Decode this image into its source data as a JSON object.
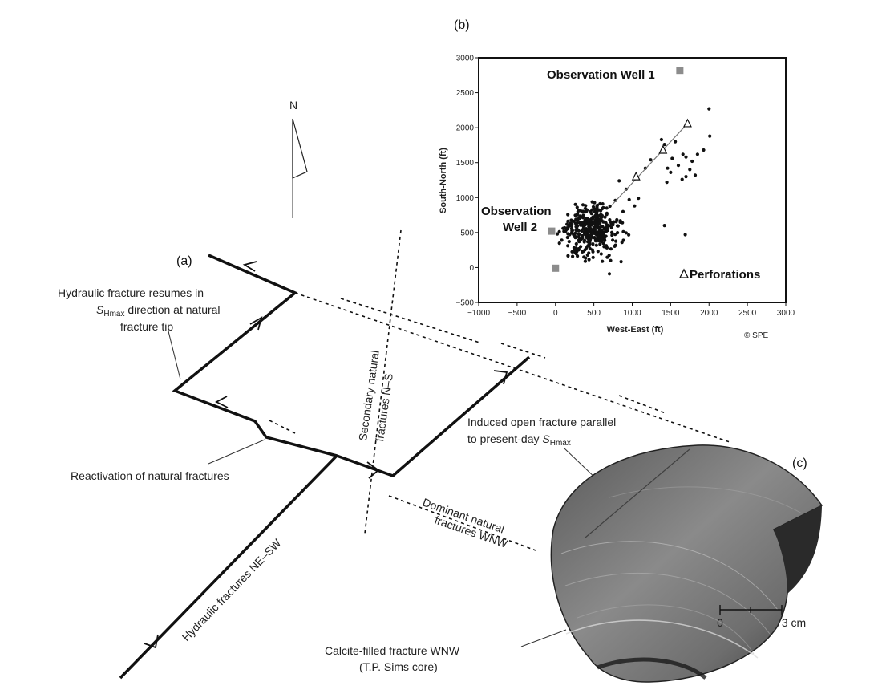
{
  "panels": {
    "a": "(a)",
    "b": "(b)",
    "c": "(c)"
  },
  "compass": {
    "label": "N"
  },
  "labels": {
    "hydraulic_resumes_1": "Hydraulic fracture resumes in",
    "hydraulic_resumes_s": "S",
    "hydraulic_resumes_sub": "Hmax",
    "hydraulic_resumes_2": " direction at natural",
    "hydraulic_resumes_3": "fracture tip",
    "reactivation": "Reactivation of natural fractures",
    "secondary_1": "Secondary natural",
    "secondary_2": "fractures N–S",
    "induced_1": "Induced open fracture parallel",
    "induced_2": "to present-day ",
    "induced_s": "S",
    "induced_sub": "Hmax",
    "dominant_1": "Dominant natural",
    "dominant_2": "fractures WNW",
    "hydraulic_ne": "Hydraulic fractures NE–SW",
    "calcite_1": "Calcite-filled fracture WNW",
    "calcite_2": "(T.P. Sims core)",
    "scale_0": "0",
    "scale_3": "3 cm"
  },
  "chart_data": {
    "type": "scatter",
    "xlabel": "West-East (ft)",
    "ylabel": "South-North (ft)",
    "xlim": [
      -1000,
      3000
    ],
    "ylim": [
      -500,
      3000
    ],
    "x_ticks": [
      "−1000",
      "−500",
      "0",
      "500",
      "1000",
      "1500",
      "2000",
      "2500",
      "3000"
    ],
    "y_ticks": [
      "−500",
      "0",
      "500",
      "1000",
      "1500",
      "2000",
      "2500",
      "3000"
    ],
    "annotations": {
      "obs1": "Observation Well 1",
      "obs2_1": "Observation",
      "obs2_2": "Well 2",
      "perf": "Perforations",
      "copyright": "© SPE"
    },
    "wells": [
      {
        "name": "Observation Well 1",
        "x": 1620,
        "y": 2820
      },
      {
        "name": "Observation Well 2",
        "x": -50,
        "y": 520
      },
      {
        "name": "Observation Well 2 (lower)",
        "x": 0,
        "y": -10
      }
    ],
    "perforations": [
      {
        "x": 1050,
        "y": 1300
      },
      {
        "x": 1400,
        "y": 1680
      },
      {
        "x": 1720,
        "y": 2060
      }
    ],
    "trend_line": [
      [
        740,
        900
      ],
      [
        1720,
        2060
      ]
    ],
    "microseismic": [
      [
        2000,
        2270
      ],
      [
        2010,
        1880
      ],
      [
        1930,
        1680
      ],
      [
        1850,
        1620
      ],
      [
        1780,
        1520
      ],
      [
        1700,
        1580
      ],
      [
        1750,
        1400
      ],
      [
        1820,
        1320
      ],
      [
        1650,
        1260
      ],
      [
        1600,
        1460
      ],
      [
        1520,
        1560
      ],
      [
        1460,
        1420
      ],
      [
        1420,
        1760
      ],
      [
        1380,
        1830
      ],
      [
        1560,
        1800
      ],
      [
        1450,
        1220
      ],
      [
        1500,
        1360
      ],
      [
        1700,
        1300
      ],
      [
        1660,
        1620
      ],
      [
        1690,
        470
      ],
      [
        1420,
        600
      ],
      [
        1080,
        990
      ],
      [
        1030,
        880
      ],
      [
        960,
        970
      ],
      [
        920,
        1120
      ],
      [
        880,
        800
      ],
      [
        830,
        1240
      ],
      [
        780,
        960
      ],
      [
        1240,
        1540
      ],
      [
        1170,
        1420
      ]
    ]
  }
}
